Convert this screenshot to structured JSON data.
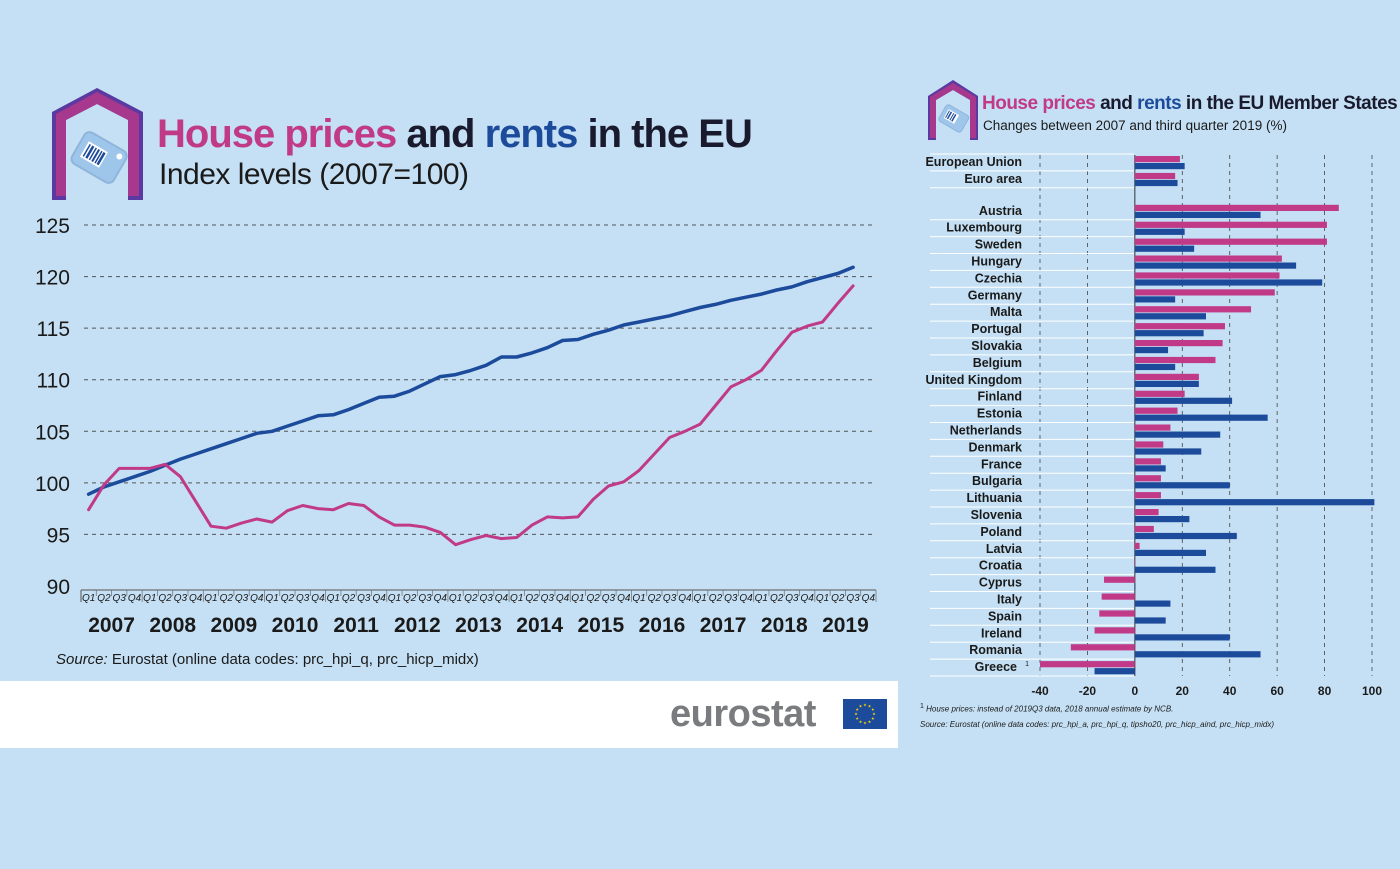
{
  "left": {
    "title_a": "House prices",
    "title_b": " and ",
    "title_c": "rents",
    "title_d": " in the EU",
    "subtitle": "Index levels (2007=100)",
    "source_label": "Source:",
    "source_text": " Eurostat (online data codes: prc_hpi_q, prc_hicp_midx)"
  },
  "right": {
    "title_a": "House prices",
    "title_b": " and ",
    "title_c": "rents",
    "title_d": " in the EU Member States",
    "subtitle": "Changes between 2007 and third quarter 2019 (%)",
    "footnote_mark": "1",
    "footnote": " House prices: instead of 2019Q3 data, 2018 annual estimate by NCB.",
    "source": "Source: Eurostat (online data codes: prc_hpi_a, prc_hpi_q, tipsho20, prc_hicp_aind, prc_hicp_midx)"
  },
  "logo": {
    "text": "eurostat"
  },
  "colors": {
    "prices": "#c03a88",
    "rents": "#1d4b9b",
    "background": "#c5e0f4",
    "grid": "#555555"
  },
  "icons": [
    "house-tag-icon",
    "eu-flag-icon"
  ],
  "chart_data": [
    {
      "type": "line",
      "title": "House prices and rents in the EU",
      "subtitle": "Index levels (2007=100)",
      "ylim": [
        90,
        125
      ],
      "yticks": [
        90,
        95,
        100,
        105,
        110,
        115,
        120,
        125
      ],
      "years": [
        "2007",
        "2008",
        "2009",
        "2010",
        "2011",
        "2012",
        "2013",
        "2014",
        "2015",
        "2016",
        "2017",
        "2018",
        "2019"
      ],
      "quarter_labels": [
        "Q1",
        "Q2",
        "Q3",
        "Q4"
      ],
      "series": [
        {
          "name": "House prices",
          "color": "#c03a88",
          "values": [
            97.4,
            99.8,
            101.4,
            101.4,
            101.4,
            101.8,
            100.6,
            98.2,
            95.8,
            95.6,
            96.1,
            96.5,
            96.2,
            97.3,
            97.8,
            97.5,
            97.4,
            98.0,
            97.8,
            96.7,
            95.9,
            95.9,
            95.7,
            95.2,
            94.0,
            94.5,
            94.9,
            94.6,
            94.7,
            95.9,
            96.7,
            96.6,
            96.7,
            98.4,
            99.7,
            100.1,
            101.2,
            102.8,
            104.4,
            105.0,
            105.7,
            107.5,
            109.3,
            110.0,
            110.9,
            112.8,
            114.6,
            115.2,
            115.6,
            117.4,
            119.1
          ]
        },
        {
          "name": "Rents",
          "color": "#1d4b9b",
          "values": [
            98.9,
            99.6,
            100.1,
            100.6,
            101.1,
            101.7,
            102.3,
            102.8,
            103.3,
            103.8,
            104.3,
            104.8,
            105.0,
            105.5,
            106.0,
            106.5,
            106.6,
            107.1,
            107.7,
            108.3,
            108.4,
            108.9,
            109.6,
            110.3,
            110.5,
            110.9,
            111.4,
            112.2,
            112.2,
            112.6,
            113.1,
            113.8,
            113.9,
            114.4,
            114.8,
            115.3,
            115.6,
            115.9,
            116.2,
            116.6,
            117.0,
            117.3,
            117.7,
            118.0,
            118.3,
            118.7,
            119.0,
            119.5,
            119.9,
            120.3,
            120.9
          ]
        }
      ]
    },
    {
      "type": "bar",
      "orientation": "horizontal",
      "title": "House prices and rents in the EU Member States",
      "subtitle": "Changes between 2007 and third quarter 2019 (%)",
      "xlim": [
        -40,
        100
      ],
      "xticks": [
        -40,
        -20,
        0,
        20,
        40,
        60,
        80,
        100
      ],
      "categories": [
        "European Union",
        "Euro area",
        "Austria",
        "Luxembourg",
        "Sweden",
        "Hungary",
        "Czechia",
        "Germany",
        "Malta",
        "Portugal",
        "Slovakia",
        "Belgium",
        "United Kingdom",
        "Finland",
        "Estonia",
        "Netherlands",
        "Denmark",
        "France",
        "Bulgaria",
        "Lithuania",
        "Slovenia",
        "Poland",
        "Latvia",
        "Croatia",
        "Cyprus",
        "Italy",
        "Spain",
        "Ireland",
        "Romania",
        "Greece"
      ],
      "group_gap_after": "Euro area",
      "footnote_category": "Greece",
      "footnote_mark": "1",
      "series": [
        {
          "name": "House prices",
          "color": "#c03a88",
          "values": [
            19,
            17,
            86,
            81,
            81,
            62,
            61,
            59,
            49,
            38,
            37,
            34,
            27,
            21,
            18,
            15,
            12,
            11,
            11,
            11,
            10,
            8,
            2,
            0,
            -13,
            -14,
            -15,
            -17,
            -27,
            -40
          ]
        },
        {
          "name": "Rents",
          "color": "#1d4b9b",
          "values": [
            21,
            18,
            53,
            21,
            25,
            68,
            79,
            17,
            30,
            29,
            14,
            17,
            27,
            41,
            56,
            36,
            28,
            13,
            40,
            101,
            23,
            43,
            30,
            34,
            0,
            15,
            13,
            40,
            53,
            -17
          ]
        }
      ]
    }
  ]
}
